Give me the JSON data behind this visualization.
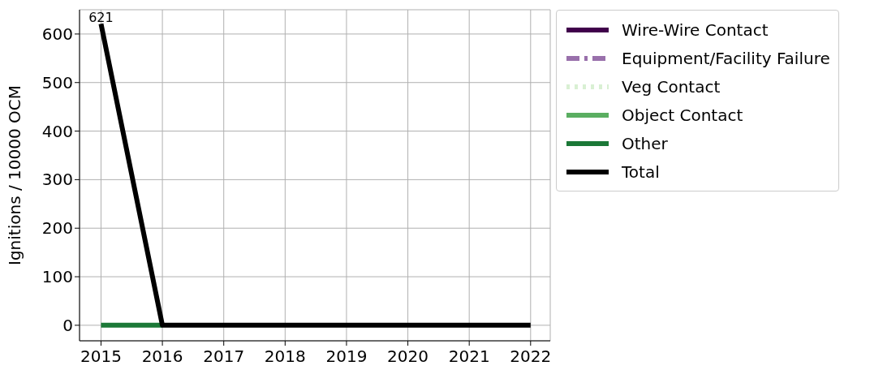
{
  "chart_data": {
    "type": "line",
    "ylabel": "Ignitions / 10000 OCM",
    "x": [
      2015,
      2016,
      2017,
      2018,
      2019,
      2020,
      2021,
      2022
    ],
    "series": [
      {
        "name": "Wire-Wire Contact",
        "color": "#40004b",
        "line_style": "solid",
        "values": [
          null,
          null,
          null,
          null,
          null,
          null,
          null,
          null
        ]
      },
      {
        "name": "Equipment/Facility Failure",
        "color": "#9970ab",
        "line_style": "dashed",
        "values": [
          null,
          null,
          null,
          null,
          null,
          null,
          null,
          null
        ]
      },
      {
        "name": "Veg Contact",
        "color": "#d9f0d3",
        "line_style": "dotted",
        "values": [
          null,
          null,
          null,
          null,
          null,
          null,
          null,
          null
        ]
      },
      {
        "name": "Object Contact",
        "color": "#5aae61",
        "line_style": "solid",
        "values": [
          null,
          null,
          null,
          null,
          null,
          null,
          null,
          null
        ]
      },
      {
        "name": "Other",
        "color": "#1b7837",
        "line_style": "solid",
        "values": [
          0,
          0,
          null,
          null,
          null,
          null,
          null,
          null
        ]
      },
      {
        "name": "Total",
        "color": "#000000",
        "line_style": "solid",
        "values": [
          621,
          0,
          0,
          0,
          0,
          0,
          0,
          0
        ]
      }
    ],
    "annotations": [
      {
        "text": "621",
        "x": 2015,
        "y": 621
      }
    ],
    "xlim": [
      2014.65,
      2022.32
    ],
    "xticks": [
      2015,
      2016,
      2017,
      2018,
      2019,
      2020,
      2021,
      2022
    ],
    "ylim": [
      -32,
      650
    ],
    "yticks": [
      0,
      100,
      200,
      300,
      400,
      500,
      600
    ],
    "grid": true,
    "legend": "top right",
    "marker": "none"
  }
}
